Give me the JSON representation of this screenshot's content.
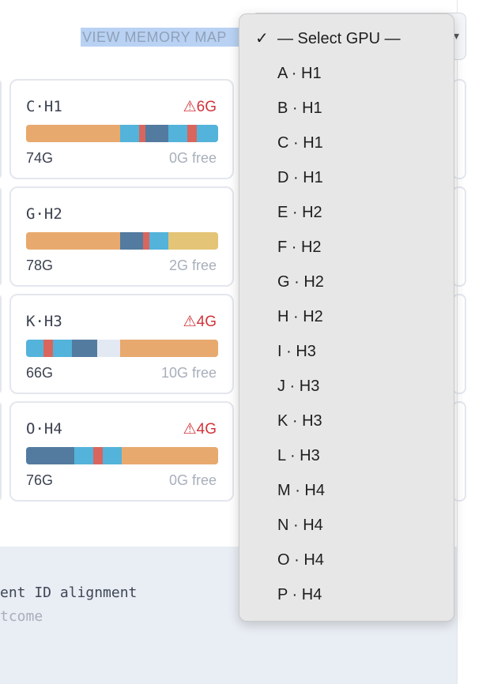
{
  "header": {
    "view_memory_map": "VIEW MEMORY MAP"
  },
  "gpu_cards": [
    {
      "name": "C·H1",
      "warning": "⚠6G",
      "used": "74G",
      "free": "0G free",
      "segments": [
        {
          "pct": 49,
          "color": "#e8a96e"
        },
        {
          "pct": 10,
          "color": "#53b3da"
        },
        {
          "pct": 3,
          "color": "#d9665e"
        },
        {
          "pct": 12,
          "color": "#537ba0"
        },
        {
          "pct": 10,
          "color": "#53b3da"
        },
        {
          "pct": 5,
          "color": "#d9665e"
        },
        {
          "pct": 11,
          "color": "#53b3da"
        }
      ]
    },
    {
      "name": "G·H2",
      "warning": "",
      "used": "78G",
      "free": "2G free",
      "segments": [
        {
          "pct": 49,
          "color": "#e8a96e"
        },
        {
          "pct": 12,
          "color": "#537ba0"
        },
        {
          "pct": 3,
          "color": "#d9665e"
        },
        {
          "pct": 10,
          "color": "#53b3da"
        },
        {
          "pct": 26,
          "color": "#e4c476"
        }
      ]
    },
    {
      "name": "K·H3",
      "warning": "⚠4G",
      "used": "66G",
      "free": "10G free",
      "segments": [
        {
          "pct": 9,
          "color": "#53b3da"
        },
        {
          "pct": 5,
          "color": "#d9665e"
        },
        {
          "pct": 10,
          "color": "#53b3da"
        },
        {
          "pct": 13,
          "color": "#537ba0"
        },
        {
          "pct": 12,
          "color": "#e3e9f2"
        },
        {
          "pct": 51,
          "color": "#e8a96e"
        }
      ]
    },
    {
      "name": "O·H4",
      "warning": "⚠4G",
      "used": "76G",
      "free": "0G free",
      "segments": [
        {
          "pct": 12,
          "color": "#537ba0"
        },
        {
          "pct": 13,
          "color": "#537ba0"
        },
        {
          "pct": 10,
          "color": "#53b3da"
        },
        {
          "pct": 5,
          "color": "#d9665e"
        },
        {
          "pct": 10,
          "color": "#53b3da"
        },
        {
          "pct": 50,
          "color": "#e8a96e"
        }
      ]
    }
  ],
  "bottom_panel": {
    "line1": "ent ID alignment",
    "line2": "tcome"
  },
  "dropdown": {
    "checkmark": "✓",
    "selected": "— Select GPU —",
    "options": [
      "A · H1",
      "B · H1",
      "C · H1",
      "D · H1",
      "E · H2",
      "F · H2",
      "G · H2",
      "H · H2",
      "I · H3",
      "J · H3",
      "K · H3",
      "L · H3",
      "M · H4",
      "N · H4",
      "O · H4",
      "P · H4"
    ]
  },
  "icons": {
    "warning": "warning-icon",
    "check": "check-icon",
    "chevron": "chevron-down-icon"
  }
}
